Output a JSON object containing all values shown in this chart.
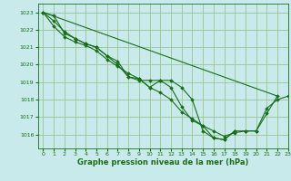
{
  "title": "Graphe pression niveau de la mer (hPa)",
  "background_color": "#c8eaea",
  "grid_color": "#a0c8a0",
  "line_color": "#1a6e1a",
  "marker_color": "#1a6e1a",
  "xlim": [
    -0.5,
    23
  ],
  "ylim": [
    1015.2,
    1023.5
  ],
  "yticks": [
    1016,
    1017,
    1018,
    1019,
    1020,
    1021,
    1022,
    1023
  ],
  "xticks": [
    0,
    1,
    2,
    3,
    4,
    5,
    6,
    7,
    8,
    9,
    10,
    11,
    12,
    13,
    14,
    15,
    16,
    17,
    18,
    19,
    20,
    21,
    22,
    23
  ],
  "series": [
    [
      1023.0,
      1022.5,
      1021.9,
      1021.5,
      1021.2,
      1021.0,
      1020.5,
      1020.2,
      1019.3,
      1019.2,
      1018.7,
      1019.1,
      1019.1,
      1018.7,
      1018.0,
      1016.2,
      1015.8,
      1015.7,
      1016.2,
      1016.2,
      1016.2,
      1017.2,
      1018.2,
      null
    ],
    [
      1023.0,
      1022.8,
      1021.8,
      1021.5,
      1021.2,
      1021.0,
      1020.5,
      1020.0,
      1019.3,
      1019.1,
      1019.1,
      1019.1,
      1018.7,
      1017.6,
      1016.8,
      1016.5,
      1015.8,
      1015.7,
      1016.2,
      null,
      null,
      null,
      null,
      null
    ],
    [
      1023.0,
      1022.2,
      1021.6,
      1021.3,
      1021.1,
      1020.8,
      1020.3,
      1019.9,
      1019.5,
      1019.2,
      1018.7,
      1018.4,
      1018.0,
      1017.3,
      1016.9,
      1016.5,
      1016.2,
      1015.9,
      1016.1,
      1016.2,
      1016.2,
      1017.5,
      1018.0,
      1018.2
    ]
  ],
  "linear_series": [
    1023.0,
    null,
    null,
    null,
    null,
    null,
    null,
    null,
    null,
    null,
    null,
    null,
    null,
    null,
    null,
    null,
    null,
    null,
    null,
    null,
    null,
    null,
    1018.2,
    null
  ]
}
